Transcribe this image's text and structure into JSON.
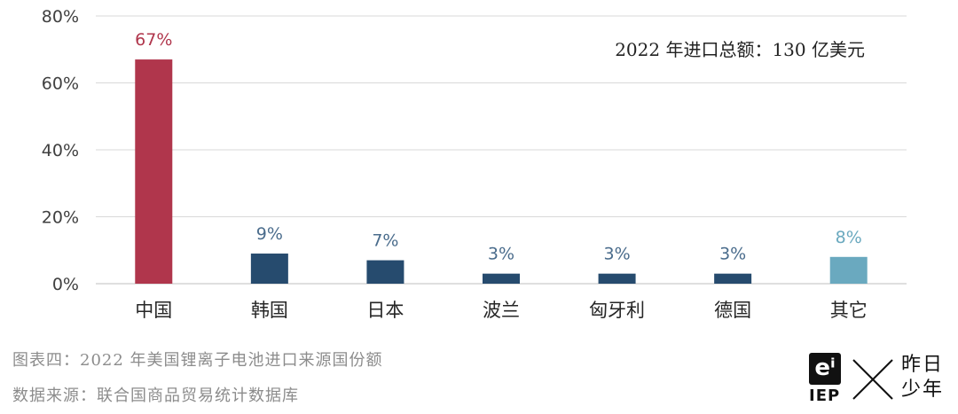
{
  "chart_data": {
    "type": "bar",
    "categories": [
      "中国",
      "韩国",
      "日本",
      "波兰",
      "匈牙利",
      "德国",
      "其它"
    ],
    "values": [
      67,
      9,
      7,
      3,
      3,
      3,
      8
    ],
    "value_labels": [
      "67%",
      "9%",
      "7%",
      "3%",
      "3%",
      "3%",
      "8%"
    ],
    "bar_colors": [
      "#b0364c",
      "#264b6e",
      "#264b6e",
      "#264b6e",
      "#264b6e",
      "#264b6e",
      "#6aa9bf"
    ],
    "label_colors": [
      "#b0364c",
      "#4a6c8c",
      "#4a6c8c",
      "#4a6c8c",
      "#4a6c8c",
      "#4a6c8c",
      "#6aa9bf"
    ],
    "ylim": [
      0,
      80
    ],
    "yticks": [
      "0%",
      "20%",
      "40%",
      "60%",
      "80%"
    ],
    "grid": true,
    "annotation": "2022 年进口总额：130 亿美元"
  },
  "caption": "图表四：2022 年美国锂离子电池进口来源国份额",
  "source": "数据来源：联合国商品贸易统计数据库",
  "logo": {
    "mark": "eⁱ",
    "iep": "IEP",
    "brand_line1": "昨日",
    "brand_line2": "少年"
  }
}
